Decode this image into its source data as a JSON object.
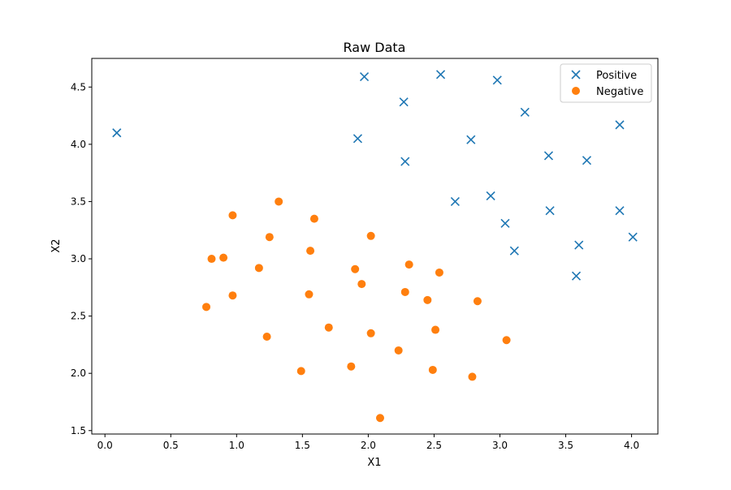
{
  "chart_data": {
    "type": "scatter",
    "title": "Raw Data",
    "xlabel": "X1",
    "ylabel": "X2",
    "xlim": [
      -0.1,
      4.2
    ],
    "ylim": [
      1.47,
      4.75
    ],
    "xticks": [
      0.0,
      0.5,
      1.0,
      1.5,
      2.0,
      2.5,
      3.0,
      3.5,
      4.0
    ],
    "xtick_labels": [
      "0.0",
      "0.5",
      "1.0",
      "1.5",
      "2.0",
      "2.5",
      "3.0",
      "3.5",
      "4.0"
    ],
    "yticks": [
      1.5,
      2.0,
      2.5,
      3.0,
      3.5,
      4.0,
      4.5
    ],
    "ytick_labels": [
      "1.5",
      "2.0",
      "2.5",
      "3.0",
      "3.5",
      "4.0",
      "4.5"
    ],
    "grid": false,
    "legend": "top-right",
    "series": [
      {
        "name": "Positive",
        "marker": "x",
        "color": "#1f77b4",
        "x": [
          0.09,
          1.97,
          2.55,
          2.98,
          2.27,
          3.19,
          1.92,
          2.78,
          3.91,
          2.28,
          3.37,
          3.66,
          2.66,
          2.93,
          3.38,
          3.91,
          3.04,
          4.01,
          3.6,
          3.11,
          3.58
        ],
        "y": [
          4.1,
          4.59,
          4.61,
          4.56,
          4.37,
          4.28,
          4.05,
          4.04,
          4.17,
          3.85,
          3.9,
          3.86,
          3.5,
          3.55,
          3.42,
          3.42,
          3.31,
          3.19,
          3.12,
          3.07,
          2.85
        ]
      },
      {
        "name": "Negative",
        "marker": "o",
        "color": "#ff7f0e",
        "x": [
          1.32,
          0.97,
          1.59,
          1.25,
          2.02,
          0.81,
          0.9,
          1.56,
          1.17,
          2.31,
          2.54,
          1.9,
          1.95,
          0.97,
          1.55,
          2.28,
          2.45,
          2.83,
          0.77,
          1.7,
          2.51,
          1.23,
          2.02,
          3.05,
          2.23,
          1.49,
          1.87,
          2.49,
          2.79,
          2.09
        ],
        "y": [
          3.5,
          3.38,
          3.35,
          3.19,
          3.2,
          3.0,
          3.01,
          3.07,
          2.92,
          2.95,
          2.88,
          2.91,
          2.78,
          2.68,
          2.69,
          2.71,
          2.64,
          2.63,
          2.58,
          2.4,
          2.38,
          2.32,
          2.35,
          2.29,
          2.2,
          2.02,
          2.06,
          2.03,
          1.97,
          1.61
        ]
      }
    ]
  }
}
